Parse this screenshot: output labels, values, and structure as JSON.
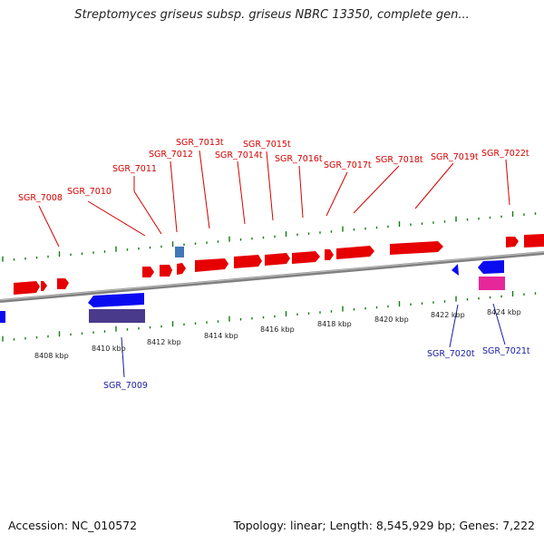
{
  "title": "Streptomyces griseus subsp. griseus NBRC 13350, complete gen...",
  "footer": {
    "accession": "Accession: NC_010572",
    "topology": "Topology: linear; Length: 8,545,929 bp; Genes: 7,222"
  },
  "colors": {
    "forward_gene": "#e60000",
    "reverse_gene": "#0b0bf0",
    "reverse_cds_dark": "#4a3a8c",
    "rna_pink": "#e6279a",
    "small_rna_blue": "#3e78b8",
    "red_label": "#d40000",
    "blue_label": "#1a1aa6",
    "tick_green": "#137a13",
    "backbone": "#808080"
  },
  "forward_labels": [
    "SGR_7008",
    "SGR_7010",
    "SGR_7011",
    "SGR_7012",
    "SGR_7013t",
    "SGR_7014t",
    "SGR_7015t",
    "SGR_7016t",
    "SGR_7017t",
    "SGR_7018t",
    "SGR_7019t",
    "SGR_7022t"
  ],
  "reverse_labels": [
    "SGR_7009",
    "SGR_7020t",
    "SGR_7021t"
  ],
  "ruler_labels": [
    "8408 kbp",
    "8410 kbp",
    "8412 kbp",
    "8414 kbp",
    "8416 kbp",
    "8418 kbp",
    "8420 kbp",
    "8422 kbp",
    "8424 kbp"
  ]
}
